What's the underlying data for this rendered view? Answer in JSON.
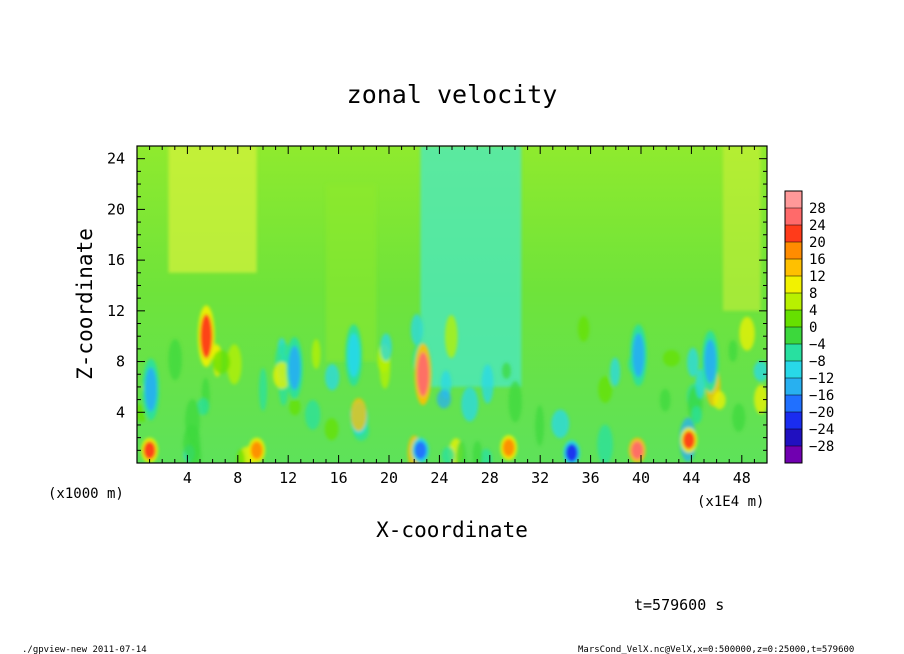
{
  "chart_data": {
    "type": "heatmap",
    "title": "zonal velocity",
    "xlabel": "X-coordinate",
    "ylabel": "Z-coordinate",
    "x_unit_label": "(x1E4 m)",
    "y_unit_label": "(x1000 m)",
    "xlim": [
      0,
      50
    ],
    "ylim": [
      0,
      25
    ],
    "xticks": [
      4,
      8,
      12,
      16,
      20,
      24,
      28,
      32,
      36,
      40,
      44,
      48
    ],
    "yticks": [
      4,
      8,
      12,
      16,
      20,
      24
    ],
    "x_tick_labels": [
      "4",
      "8",
      "12",
      "16",
      "20",
      "24",
      "28",
      "32",
      "36",
      "40",
      "44",
      "48"
    ],
    "y_tick_labels": [
      "4",
      "8",
      "12",
      "16",
      "20",
      "24"
    ],
    "colorbar": {
      "levels": [
        28,
        24,
        20,
        16,
        12,
        8,
        4,
        0,
        -4,
        -8,
        -12,
        -16,
        -20,
        -24,
        -28
      ],
      "labels": [
        "28",
        "24",
        "20",
        "16",
        "12",
        "8",
        "4",
        "0",
        "−4",
        "−8",
        "−12",
        "−16",
        "−20",
        "−24",
        "−28"
      ],
      "colors": [
        "#ff9999",
        "#ff6a6a",
        "#ff3b1a",
        "#ff8c00",
        "#ffc000",
        "#f2f200",
        "#b8f000",
        "#66e000",
        "#3cd83c",
        "#28e0a0",
        "#28d8e8",
        "#28b0f0",
        "#2070ff",
        "#1a2cf0",
        "#2010c0",
        "#7000b0"
      ]
    },
    "colors": {
      "background_field": "#5ee25a",
      "upper_field": "#8fea2e",
      "upper_band": "#d9f23a",
      "cyan_band": "#49e8c6"
    },
    "features": [
      {
        "x": 5.5,
        "z": 10,
        "value": 20
      },
      {
        "x": 22.7,
        "z": 7,
        "value": 24
      },
      {
        "x": 39.8,
        "z": 8.5,
        "value": -16
      },
      {
        "x": 1.1,
        "z": 5.8,
        "value": -14
      },
      {
        "x": 12.5,
        "z": 7.5,
        "value": -14
      },
      {
        "x": 17.2,
        "z": 8.5,
        "value": -12
      },
      {
        "x": 45.5,
        "z": 8,
        "value": -14
      },
      {
        "x": 34.5,
        "z": 0.8,
        "value": -24
      },
      {
        "x": 22.5,
        "z": 1,
        "value": -20
      },
      {
        "x": 39.7,
        "z": 1,
        "value": 24
      },
      {
        "x": 1.0,
        "z": 1,
        "value": 20
      },
      {
        "x": 43.8,
        "z": 1.8,
        "value": 20
      },
      {
        "x": 9.5,
        "z": 1,
        "value": 16
      },
      {
        "x": 29.5,
        "z": 1.2,
        "value": 16
      }
    ]
  },
  "footer": {
    "time_label": "t=579600 s",
    "program": "./gpview-new  2011-07-14",
    "source": "MarsCond_VelX.nc@VelX,x=0:500000,z=0:25000,t=579600"
  }
}
